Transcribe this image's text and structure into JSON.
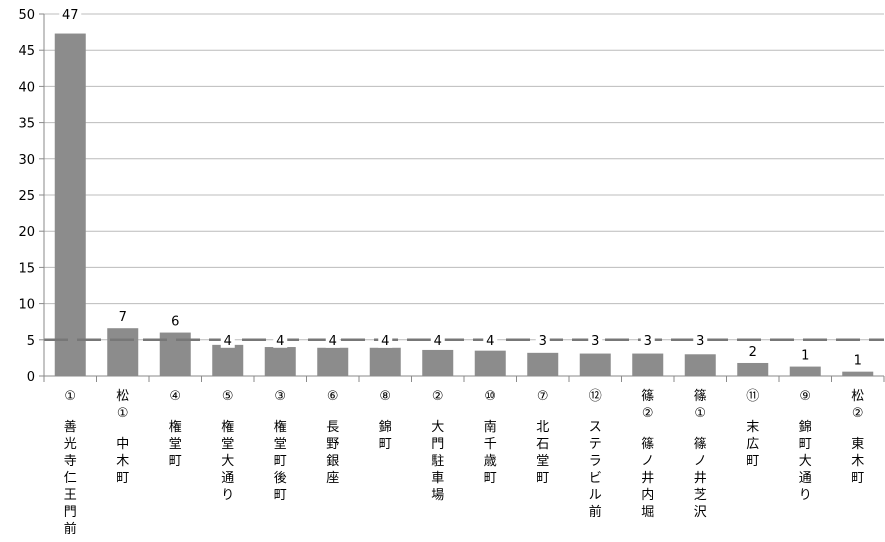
{
  "chart_data": {
    "type": "bar",
    "title": "",
    "xlabel": "",
    "ylabel": "",
    "ylim": [
      0,
      50
    ],
    "y_ticks": [
      0,
      5,
      10,
      15,
      20,
      25,
      30,
      35,
      40,
      45,
      50
    ],
    "grid": true,
    "reference_line": 5,
    "categories": [
      {
        "number": "①",
        "name": "善光寺仁王門前"
      },
      {
        "number": "松①",
        "name": "中木町"
      },
      {
        "number": "④",
        "name": "権堂町"
      },
      {
        "number": "⑤",
        "name": "権堂大通り"
      },
      {
        "number": "③",
        "name": "権堂町後町"
      },
      {
        "number": "⑥",
        "name": "長野銀座"
      },
      {
        "number": "⑧",
        "name": "錦町"
      },
      {
        "number": "②",
        "name": "大門駐車場"
      },
      {
        "number": "⑩",
        "name": "南千歳町"
      },
      {
        "number": "⑦",
        "name": "北石堂町"
      },
      {
        "number": "⑫",
        "name": "ステラビル前"
      },
      {
        "number": "篠②",
        "name": "篠ノ井内堀"
      },
      {
        "number": "篠①",
        "name": "篠ノ井芝沢"
      },
      {
        "number": "⑪",
        "name": "末広町"
      },
      {
        "number": "⑨",
        "name": "錦町大通り"
      },
      {
        "number": "松②",
        "name": "東木町"
      }
    ],
    "values": [
      47.3,
      6.6,
      6.0,
      4.3,
      4.0,
      3.9,
      3.9,
      3.6,
      3.5,
      3.2,
      3.1,
      3.1,
      3.0,
      1.8,
      1.3,
      0.6
    ],
    "data_labels": [
      "47",
      "7",
      "6",
      "4",
      "4",
      "4",
      "4",
      "4",
      "4",
      "3",
      "3",
      "3",
      "3",
      "2",
      "1",
      "1"
    ],
    "colors": {
      "bar": "#8c8c8c",
      "axis": "#8a8a8a",
      "grid": "#bcbcbc",
      "reference_line": "#777777"
    }
  }
}
